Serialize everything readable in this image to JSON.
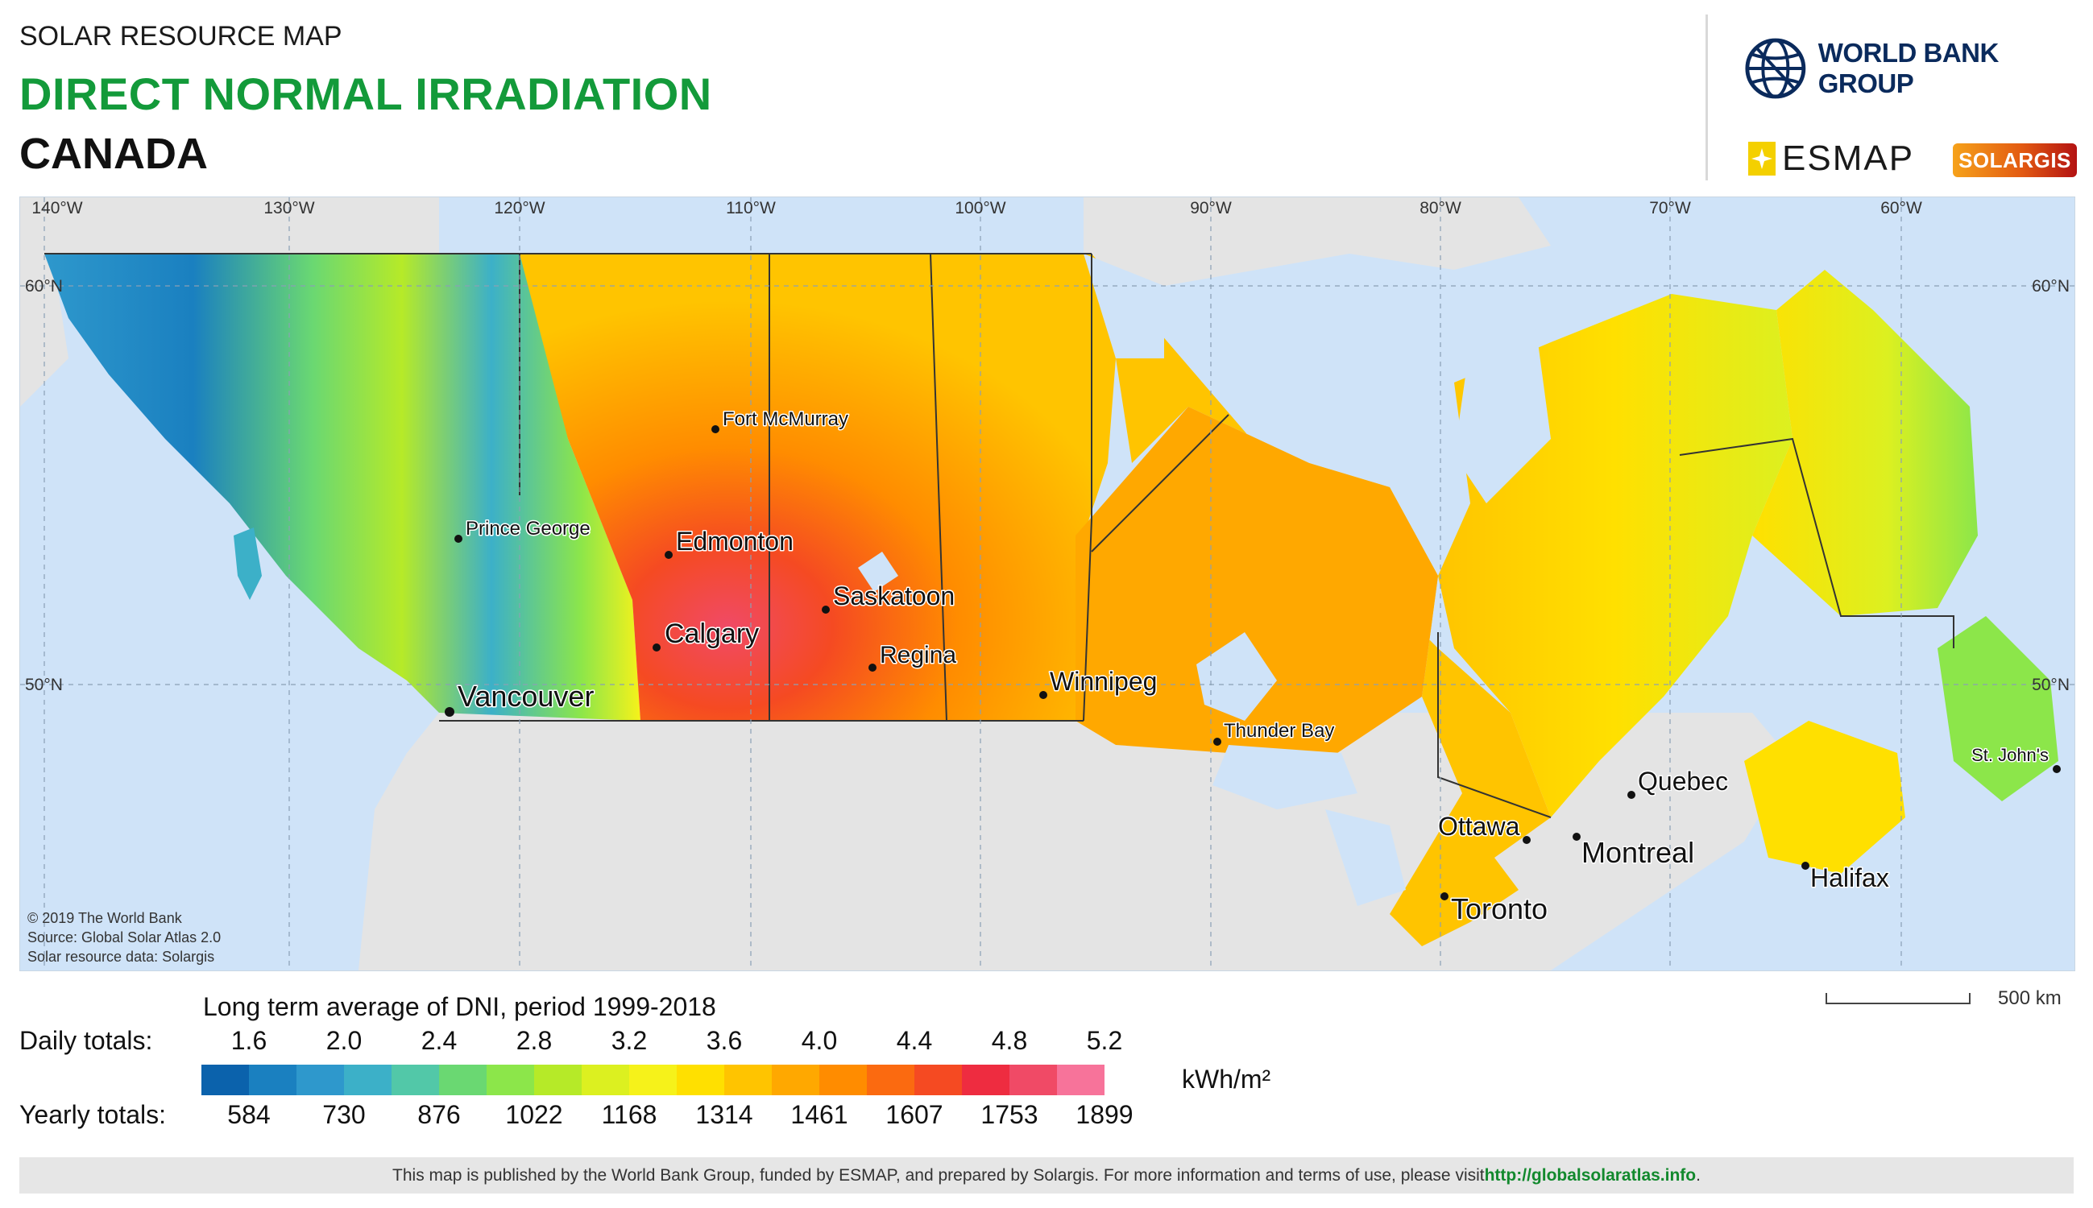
{
  "header": {
    "overline": "SOLAR RESOURCE MAP",
    "title": "DIRECT NORMAL IRRADIATION",
    "country": "CANADA"
  },
  "logos": {
    "world_bank": "WORLD BANK GROUP",
    "esmap": "ESMAP",
    "solargis": "SOLARGIS",
    "world_bank_icon": "globe-icon"
  },
  "map": {
    "longitudes": [
      "140°W",
      "130°W",
      "120°W",
      "110°W",
      "100°W",
      "90°W",
      "80°W",
      "70°W",
      "60°W"
    ],
    "latitudes": [
      "60°N",
      "50°N"
    ],
    "cities": [
      {
        "name": "Fort McMurray"
      },
      {
        "name": "Prince George"
      },
      {
        "name": "Edmonton"
      },
      {
        "name": "Saskatoon"
      },
      {
        "name": "Calgary"
      },
      {
        "name": "Regina"
      },
      {
        "name": "Vancouver"
      },
      {
        "name": "Winnipeg"
      },
      {
        "name": "Thunder Bay"
      },
      {
        "name": "Quebec"
      },
      {
        "name": "St. John's"
      },
      {
        "name": "Ottawa"
      },
      {
        "name": "Montreal"
      },
      {
        "name": "Halifax"
      },
      {
        "name": "Toronto"
      }
    ],
    "credits": {
      "line1": "© 2019 The World Bank",
      "line2": "Source: Global Solar Atlas 2.0",
      "line3": "Solar resource data: Solargis"
    },
    "colors": {
      "water": "#cfe3f8",
      "land_other": "#e4e4e4"
    }
  },
  "legend": {
    "title": "Long term average of DNI, period 1999-2018",
    "daily_label": "Daily totals:",
    "yearly_label": "Yearly totals:",
    "daily_values": [
      "1.6",
      "2.0",
      "2.4",
      "2.8",
      "3.2",
      "3.6",
      "4.0",
      "4.4",
      "4.8",
      "5.2"
    ],
    "yearly_values": [
      "584",
      "730",
      "876",
      "1022",
      "1168",
      "1314",
      "1461",
      "1607",
      "1753",
      "1899"
    ],
    "unit": "kWh/m²",
    "colors": [
      "#0b62ac",
      "#1a80c0",
      "#2e98cc",
      "#3cb0c8",
      "#52c8a8",
      "#6ad872",
      "#8ce64a",
      "#b6ea28",
      "#dcf020",
      "#f6f21a",
      "#ffe000",
      "#ffc400",
      "#ffa800",
      "#ff8c00",
      "#fb6a10",
      "#f54a22",
      "#ee2c40",
      "#f04a66",
      "#f7739a"
    ]
  },
  "scale": {
    "label": "500 km"
  },
  "footer": {
    "text": "This map is published by the World Bank Group, funded by ESMAP, and prepared by Solargis. For more information and terms of use, please visit ",
    "link": "http://globalsolaratlas.info",
    "end": "."
  }
}
